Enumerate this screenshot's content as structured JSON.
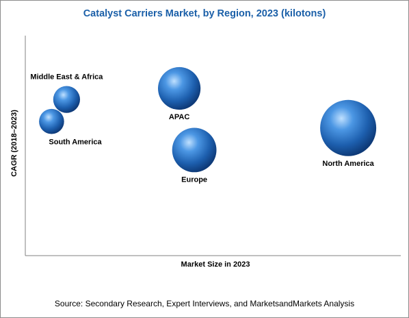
{
  "chart_data": {
    "type": "scatter",
    "title": "Catalyst Carriers Market, by Region, 2023 (kilotons)",
    "xlabel": "Market Size in 2023",
    "ylabel": "CAGR (2018–2023)",
    "grid": false,
    "series": [
      {
        "label": "Middle East & Africa",
        "x": 0.11,
        "y": 0.71,
        "size": 0.3,
        "label_pos": "above"
      },
      {
        "label": "South America",
        "x": 0.07,
        "y": 0.61,
        "size": 0.26,
        "label_pos": "below-right"
      },
      {
        "label": "APAC",
        "x": 0.41,
        "y": 0.76,
        "size": 0.66,
        "label_pos": "below"
      },
      {
        "label": "Europe",
        "x": 0.45,
        "y": 0.48,
        "size": 0.7,
        "label_pos": "below"
      },
      {
        "label": "North America",
        "x": 0.86,
        "y": 0.58,
        "size": 0.97,
        "label_pos": "below"
      }
    ]
  },
  "source": "Source: Secondary Research, Expert Interviews, and MarketsandMarkets Analysis",
  "colors": {
    "title": "#1a5fa8",
    "bubble_light": "#bfe0ff",
    "bubble_mid": "#3a86d6",
    "bubble_dark": "#0e3a78",
    "axis": "#808080"
  }
}
